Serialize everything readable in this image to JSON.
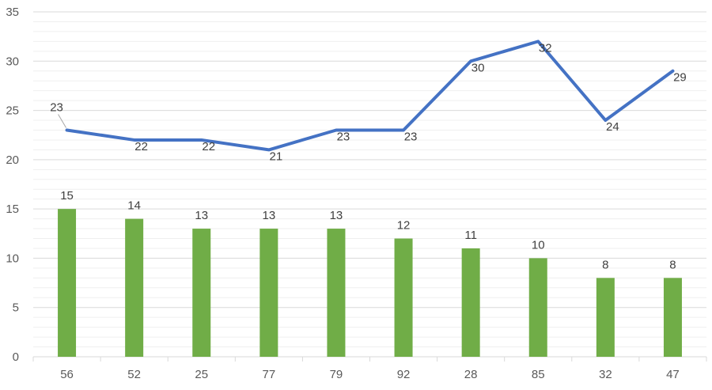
{
  "chart_data": {
    "type": "bar+line",
    "title": "",
    "xlabel": "",
    "ylabel": "",
    "categories": [
      "56",
      "52",
      "25",
      "77",
      "79",
      "92",
      "28",
      "85",
      "32",
      "47"
    ],
    "ylim": [
      0,
      35
    ],
    "yticks": [
      0,
      5,
      10,
      15,
      20,
      25,
      30,
      35
    ],
    "grid": "horizontal",
    "legend": "none",
    "series": [
      {
        "name": "bars",
        "type": "bar",
        "color": "#70AD47",
        "values": [
          15,
          14,
          13,
          13,
          13,
          12,
          11,
          10,
          8,
          8
        ]
      },
      {
        "name": "line",
        "type": "line",
        "color": "#4472C4",
        "values": [
          23,
          22,
          22,
          21,
          23,
          23,
          30,
          32,
          24,
          29
        ]
      }
    ],
    "colors": {
      "gridline": "#D9D9D9",
      "minor_gridline": "#EFEFEF",
      "axis": "#D9D9D9",
      "tick_text": "#595959",
      "label_text": "#404040"
    }
  }
}
